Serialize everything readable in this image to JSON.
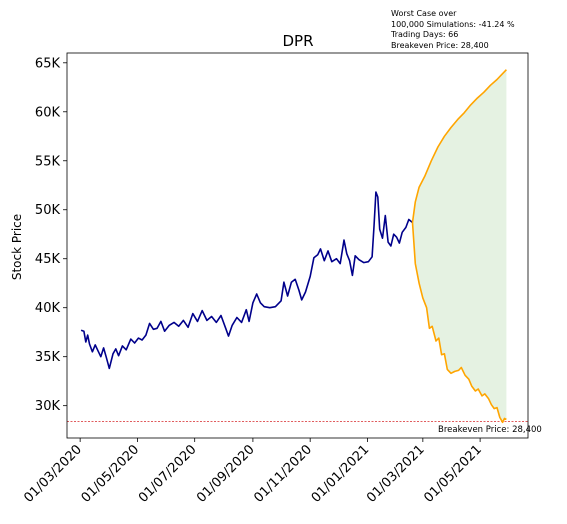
{
  "chart_data": {
    "type": "line",
    "title": "DPR",
    "ylabel": "Stock Price",
    "xlabel": "",
    "info_text": [
      "Worst Case over",
      "100,000 Simulations: -41.24 %",
      "Trading Days: 66",
      "Breakeven Price: 28,400"
    ],
    "breakeven": {
      "value": 28400,
      "label": "Breakeven Price: 28,400",
      "color": "#d62728"
    },
    "x_ticks": [
      "01/03/2020",
      "01/05/2020",
      "01/07/2020",
      "01/09/2020",
      "01/11/2020",
      "01/01/2021",
      "01/03/2021",
      "01/05/2021"
    ],
    "y_ticks": [
      30000,
      35000,
      40000,
      45000,
      50000,
      55000,
      60000,
      65000
    ],
    "y_tick_labels": [
      "30K",
      "35K",
      "40K",
      "45K",
      "50K",
      "55K",
      "60K",
      "65K"
    ],
    "xlim": [
      "2020-02-16",
      "2021-06-21"
    ],
    "ylim": [
      26700,
      66000
    ],
    "grid": false,
    "colors": {
      "history": "#00008b",
      "projection": "#ffa500",
      "fill": "#e5f2e2"
    },
    "history": [
      [
        "2020-03-02",
        37700
      ],
      [
        "2020-03-05",
        37600
      ],
      [
        "2020-03-07",
        36500
      ],
      [
        "2020-03-09",
        37200
      ],
      [
        "2020-03-11",
        36300
      ],
      [
        "2020-03-14",
        35500
      ],
      [
        "2020-03-17",
        36200
      ],
      [
        "2020-03-20",
        35600
      ],
      [
        "2020-03-23",
        35000
      ],
      [
        "2020-03-26",
        35900
      ],
      [
        "2020-03-29",
        34900
      ],
      [
        "2020-04-01",
        33800
      ],
      [
        "2020-04-05",
        35300
      ],
      [
        "2020-04-08",
        35800
      ],
      [
        "2020-04-11",
        35100
      ],
      [
        "2020-04-15",
        36100
      ],
      [
        "2020-04-19",
        35700
      ],
      [
        "2020-04-24",
        36800
      ],
      [
        "2020-04-28",
        36400
      ],
      [
        "2020-05-02",
        36900
      ],
      [
        "2020-05-06",
        36700
      ],
      [
        "2020-05-10",
        37200
      ],
      [
        "2020-05-14",
        38400
      ],
      [
        "2020-05-18",
        37800
      ],
      [
        "2020-05-22",
        37900
      ],
      [
        "2020-05-26",
        38600
      ],
      [
        "2020-05-30",
        37600
      ],
      [
        "2020-06-04",
        38200
      ],
      [
        "2020-06-09",
        38500
      ],
      [
        "2020-06-14",
        38100
      ],
      [
        "2020-06-19",
        38700
      ],
      [
        "2020-06-24",
        38000
      ],
      [
        "2020-06-29",
        39400
      ],
      [
        "2020-07-04",
        38600
      ],
      [
        "2020-07-09",
        39700
      ],
      [
        "2020-07-14",
        38700
      ],
      [
        "2020-07-19",
        39100
      ],
      [
        "2020-07-24",
        38500
      ],
      [
        "2020-07-29",
        39200
      ],
      [
        "2020-08-03",
        37900
      ],
      [
        "2020-08-06",
        37100
      ],
      [
        "2020-08-10",
        38200
      ],
      [
        "2020-08-15",
        39000
      ],
      [
        "2020-08-20",
        38500
      ],
      [
        "2020-08-25",
        39800
      ],
      [
        "2020-08-28",
        38600
      ],
      [
        "2020-09-01",
        40500
      ],
      [
        "2020-09-05",
        41400
      ],
      [
        "2020-09-09",
        40500
      ],
      [
        "2020-09-13",
        40100
      ],
      [
        "2020-09-19",
        40000
      ],
      [
        "2020-09-25",
        40100
      ],
      [
        "2020-10-01",
        40700
      ],
      [
        "2020-10-04",
        42600
      ],
      [
        "2020-10-08",
        41200
      ],
      [
        "2020-10-12",
        42600
      ],
      [
        "2020-10-16",
        42900
      ],
      [
        "2020-10-20",
        41800
      ],
      [
        "2020-10-23",
        40800
      ],
      [
        "2020-10-27",
        41600
      ],
      [
        "2020-11-01",
        43200
      ],
      [
        "2020-11-05",
        45100
      ],
      [
        "2020-11-09",
        45400
      ],
      [
        "2020-11-12",
        46000
      ],
      [
        "2020-11-16",
        44800
      ],
      [
        "2020-11-20",
        45800
      ],
      [
        "2020-11-24",
        44700
      ],
      [
        "2020-11-29",
        45000
      ],
      [
        "2020-12-03",
        44500
      ],
      [
        "2020-12-07",
        46900
      ],
      [
        "2020-12-10",
        45500
      ],
      [
        "2020-12-13",
        44800
      ],
      [
        "2020-12-16",
        43300
      ],
      [
        "2020-12-19",
        45300
      ],
      [
        "2020-12-23",
        44900
      ],
      [
        "2020-12-28",
        44600
      ],
      [
        "2021-01-02",
        44700
      ],
      [
        "2021-01-06",
        45200
      ],
      [
        "2021-01-08",
        48300
      ],
      [
        "2021-01-10",
        51800
      ],
      [
        "2021-01-12",
        51300
      ],
      [
        "2021-01-14",
        48000
      ],
      [
        "2021-01-17",
        47100
      ],
      [
        "2021-01-20",
        49400
      ],
      [
        "2021-01-23",
        46700
      ],
      [
        "2021-01-26",
        46300
      ],
      [
        "2021-01-29",
        47500
      ],
      [
        "2021-02-01",
        47200
      ],
      [
        "2021-02-04",
        46600
      ],
      [
        "2021-02-07",
        47700
      ],
      [
        "2021-02-11",
        48200
      ],
      [
        "2021-02-14",
        49000
      ],
      [
        "2021-02-18",
        48700
      ]
    ],
    "projection_upper": [
      [
        "2021-02-18",
        48700
      ],
      [
        "2021-02-21",
        50800
      ],
      [
        "2021-02-25",
        52300
      ],
      [
        "2021-03-03",
        53400
      ],
      [
        "2021-03-10",
        55000
      ],
      [
        "2021-03-17",
        56400
      ],
      [
        "2021-03-24",
        57500
      ],
      [
        "2021-03-31",
        58400
      ],
      [
        "2021-04-07",
        59200
      ],
      [
        "2021-04-14",
        59900
      ],
      [
        "2021-04-21",
        60700
      ],
      [
        "2021-04-28",
        61400
      ],
      [
        "2021-05-05",
        62000
      ],
      [
        "2021-05-12",
        62700
      ],
      [
        "2021-05-19",
        63300
      ],
      [
        "2021-05-24",
        63800
      ],
      [
        "2021-05-29",
        64300
      ]
    ],
    "projection_lower": [
      [
        "2021-02-18",
        48700
      ],
      [
        "2021-02-21",
        44500
      ],
      [
        "2021-02-25",
        42500
      ],
      [
        "2021-03-01",
        41000
      ],
      [
        "2021-03-05",
        40000
      ],
      [
        "2021-03-08",
        37900
      ],
      [
        "2021-03-11",
        38100
      ],
      [
        "2021-03-15",
        36600
      ],
      [
        "2021-03-18",
        36900
      ],
      [
        "2021-03-21",
        35200
      ],
      [
        "2021-03-24",
        35300
      ],
      [
        "2021-03-27",
        33700
      ],
      [
        "2021-03-31",
        33300
      ],
      [
        "2021-04-04",
        33500
      ],
      [
        "2021-04-08",
        33600
      ],
      [
        "2021-04-11",
        33900
      ],
      [
        "2021-04-15",
        33100
      ],
      [
        "2021-04-19",
        32700
      ],
      [
        "2021-04-22",
        32000
      ],
      [
        "2021-04-26",
        31500
      ],
      [
        "2021-04-29",
        31700
      ],
      [
        "2021-05-03",
        31000
      ],
      [
        "2021-05-06",
        31200
      ],
      [
        "2021-05-10",
        30700
      ],
      [
        "2021-05-13",
        30100
      ],
      [
        "2021-05-16",
        29700
      ],
      [
        "2021-05-19",
        29800
      ],
      [
        "2021-05-22",
        28800
      ],
      [
        "2021-05-25",
        28300
      ],
      [
        "2021-05-27",
        28700
      ],
      [
        "2021-05-29",
        28600
      ]
    ]
  }
}
